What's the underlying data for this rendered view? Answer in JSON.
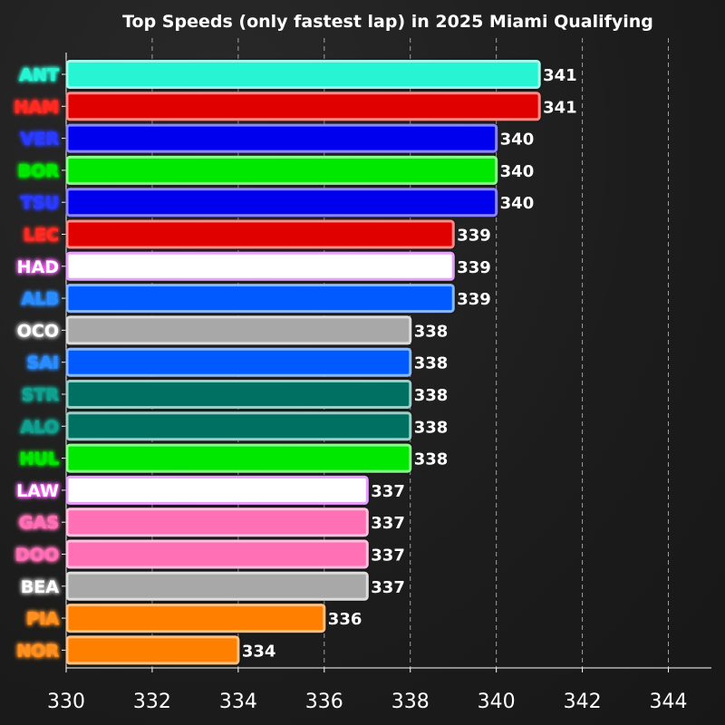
{
  "chart_data": {
    "type": "bar",
    "orientation": "horizontal",
    "title": "Top Speeds (only fastest lap) in 2025 Miami Qualifying",
    "xlabel": "",
    "ylabel": "",
    "xlim": [
      330,
      345
    ],
    "xticks": [
      330,
      332,
      334,
      336,
      338,
      340,
      342,
      344
    ],
    "grid": "vertical-dashed",
    "categories": [
      "ANT",
      "HAM",
      "VER",
      "BOR",
      "TSU",
      "LEC",
      "HAD",
      "ALB",
      "OCO",
      "SAI",
      "STR",
      "ALO",
      "HUL",
      "LAW",
      "GAS",
      "DOO",
      "BEA",
      "PIA",
      "NOR"
    ],
    "values": [
      341,
      341,
      340,
      340,
      340,
      339,
      339,
      339,
      338,
      338,
      338,
      338,
      338,
      337,
      337,
      337,
      337,
      336,
      334
    ],
    "value_labels": [
      "341",
      "341",
      "340",
      "340",
      "340",
      "339",
      "339",
      "339",
      "338",
      "338",
      "338",
      "338",
      "338",
      "337",
      "337",
      "337",
      "337",
      "336",
      "334"
    ],
    "bar_colors": [
      "#27f4d2",
      "#e10600",
      "#0600ef",
      "#00e700",
      "#0600ef",
      "#e10600",
      "#ffffff",
      "#005aff",
      "#a8a8a8",
      "#005aff",
      "#006f62",
      "#006f62",
      "#00e700",
      "#ffffff",
      "#ff6fb5",
      "#ff6fb5",
      "#a8a8a8",
      "#ff8000",
      "#ff8000"
    ],
    "bar_outlines": [
      "#9ff8ea",
      "#ff8a86",
      "#8a86ff",
      "#8aff8a",
      "#8a86ff",
      "#ff8a86",
      "#e8a0ff",
      "#8ab8ff",
      "#dcdcdc",
      "#8ab8ff",
      "#9acfc7",
      "#9acfc7",
      "#8aff8a",
      "#e8a0ff",
      "#ffc0df",
      "#ffc0df",
      "#dcdcdc",
      "#ffc080",
      "#ffc080"
    ],
    "label_colors": [
      "#27f4d2",
      "#ff2a22",
      "#2a3bff",
      "#00e700",
      "#2a3bff",
      "#ff2a22",
      "#ffffff",
      "#2a8cff",
      "#ffffff",
      "#2a8cff",
      "#10a090",
      "#10a090",
      "#00e700",
      "#ffffff",
      "#ff6fb5",
      "#ff6fb5",
      "#ffffff",
      "#ff9020",
      "#ff9020"
    ],
    "label_glows": [
      "#27f4d2",
      "#ff2a22",
      "#2a3bff",
      "#00e700",
      "#2a3bff",
      "#ff2a22",
      "#ff66ff",
      "#2a8cff",
      "#bbbbbb",
      "#2a8cff",
      "#10a090",
      "#10a090",
      "#00e700",
      "#ff66ff",
      "#ff6fb5",
      "#ff6fb5",
      "#bbbbbb",
      "#ff9020",
      "#ff9020"
    ]
  }
}
